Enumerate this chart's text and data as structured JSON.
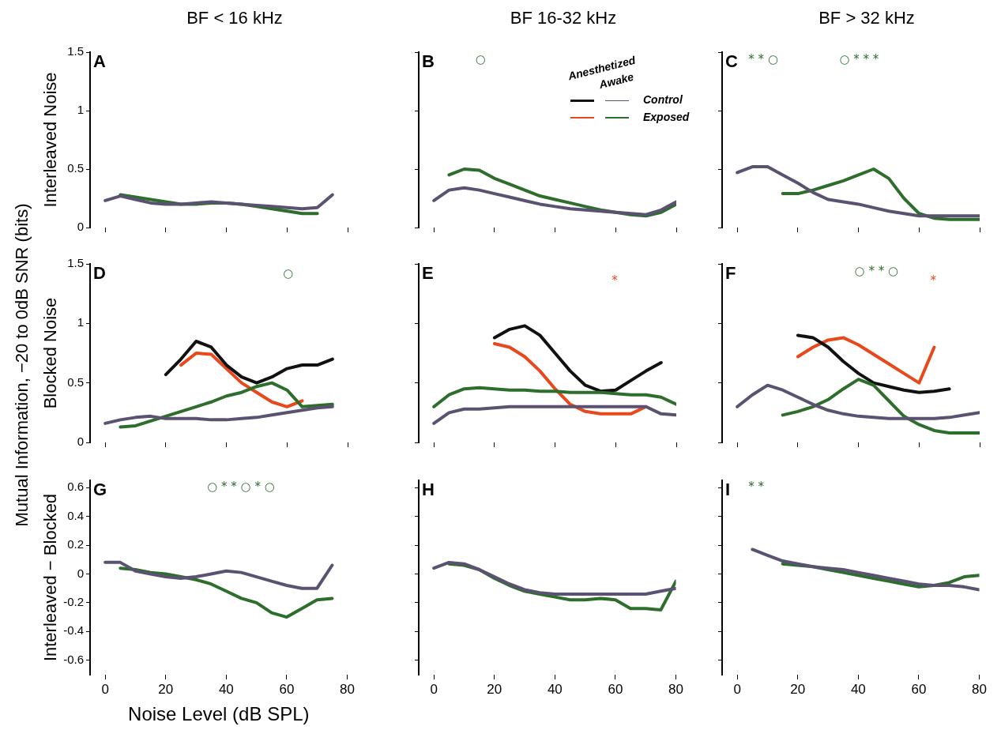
{
  "chart_data": [
    {
      "type": "line",
      "title": "A",
      "subtitle": "BF < 16 kHz",
      "ylabel": "Interleaved Noise",
      "xlim": [
        -5,
        80
      ],
      "xticks": [
        0,
        20,
        40,
        60,
        80
      ],
      "ylim": [
        0,
        1.5
      ],
      "yticks": [
        0,
        0.5,
        1,
        1.5
      ],
      "tick_labels": "y",
      "marker": "none",
      "series": [
        {
          "color": "#5b5272",
          "x": [
            0,
            5,
            10,
            15,
            20,
            25,
            30,
            35,
            40,
            45,
            50,
            55,
            60,
            65,
            70,
            75
          ],
          "values": [
            0.23,
            0.27,
            0.24,
            0.21,
            0.2,
            0.2,
            0.21,
            0.22,
            0.21,
            0.2,
            0.19,
            0.18,
            0.17,
            0.16,
            0.17,
            0.28
          ]
        },
        {
          "color": "#2d6e2d",
          "x": [
            5,
            10,
            15,
            20,
            25,
            30,
            35,
            40,
            45,
            50,
            55,
            60,
            65,
            70
          ],
          "values": [
            0.28,
            0.26,
            0.24,
            0.22,
            0.2,
            0.2,
            0.21,
            0.21,
            0.2,
            0.18,
            0.16,
            0.14,
            0.12,
            0.12
          ]
        }
      ]
    },
    {
      "type": "line",
      "title": "B",
      "subtitle": "BF 16-32 kHz",
      "xlim": [
        -5,
        80
      ],
      "xticks": [
        0,
        20,
        40,
        60,
        80
      ],
      "ylim": [
        0,
        1.5
      ],
      "yticks": [
        0,
        0.5,
        1,
        1.5
      ],
      "tick_labels": false,
      "marker": "none",
      "annotations": [
        "○",
        "Anesthetized",
        "Awake",
        "Control",
        "Exposed"
      ],
      "series": [
        {
          "color": "#5b5272",
          "x": [
            0,
            5,
            10,
            15,
            20,
            25,
            30,
            35,
            40,
            45,
            50,
            55,
            60,
            65,
            70,
            75,
            80
          ],
          "values": [
            0.23,
            0.32,
            0.34,
            0.32,
            0.29,
            0.26,
            0.23,
            0.2,
            0.18,
            0.16,
            0.15,
            0.14,
            0.13,
            0.12,
            0.11,
            0.15,
            0.22
          ]
        },
        {
          "color": "#2d6e2d",
          "x": [
            5,
            10,
            15,
            20,
            25,
            30,
            35,
            40,
            45,
            50,
            55,
            60,
            65,
            70,
            75,
            80
          ],
          "values": [
            0.45,
            0.5,
            0.49,
            0.42,
            0.37,
            0.32,
            0.27,
            0.24,
            0.21,
            0.18,
            0.15,
            0.13,
            0.11,
            0.1,
            0.13,
            0.2
          ]
        }
      ]
    },
    {
      "type": "line",
      "title": "C",
      "subtitle": "BF > 32 kHz",
      "xlim": [
        -5,
        80
      ],
      "xticks": [
        0,
        20,
        40,
        60,
        80
      ],
      "ylim": [
        0,
        1.5
      ],
      "yticks": [
        0,
        0.5,
        1,
        1.5
      ],
      "tick_labels": false,
      "marker": "none",
      "annotations": [
        "* * ○",
        "○ * * *"
      ],
      "series": [
        {
          "color": "#5b5272",
          "x": [
            0,
            5,
            10,
            15,
            20,
            25,
            30,
            35,
            40,
            45,
            50,
            55,
            60,
            65,
            70,
            75,
            80
          ],
          "values": [
            0.47,
            0.52,
            0.52,
            0.45,
            0.38,
            0.3,
            0.24,
            0.22,
            0.2,
            0.17,
            0.14,
            0.12,
            0.1,
            0.1,
            0.1,
            0.1,
            0.1
          ]
        },
        {
          "color": "#2d6e2d",
          "x": [
            15,
            20,
            25,
            30,
            35,
            40,
            45,
            50,
            55,
            60,
            65,
            70,
            75,
            80
          ],
          "values": [
            0.29,
            0.29,
            0.32,
            0.36,
            0.4,
            0.45,
            0.5,
            0.42,
            0.25,
            0.12,
            0.08,
            0.07,
            0.07,
            0.07
          ]
        }
      ]
    },
    {
      "type": "line",
      "title": "D",
      "ylabel": "Blocked Noise",
      "xlim": [
        -5,
        80
      ],
      "xticks": [
        0,
        20,
        40,
        60,
        80
      ],
      "ylim": [
        0,
        1.5
      ],
      "yticks": [
        0,
        0.5,
        1,
        1.5
      ],
      "tick_labels": "y",
      "marker": "none",
      "annotations": [
        "○",
        "Mutual Information, −20 to 0dB SNR (bits)"
      ],
      "series": [
        {
          "color": "#5b5272",
          "x": [
            0,
            5,
            10,
            15,
            20,
            25,
            30,
            35,
            40,
            45,
            50,
            55,
            60,
            65,
            70,
            75
          ],
          "values": [
            0.16,
            0.19,
            0.21,
            0.22,
            0.2,
            0.2,
            0.2,
            0.19,
            0.19,
            0.2,
            0.21,
            0.23,
            0.25,
            0.27,
            0.29,
            0.3
          ]
        },
        {
          "color": "#2d6e2d",
          "x": [
            5,
            10,
            15,
            20,
            25,
            30,
            35,
            40,
            45,
            50,
            55,
            60,
            65,
            70,
            75
          ],
          "values": [
            0.13,
            0.14,
            0.18,
            0.22,
            0.26,
            0.3,
            0.34,
            0.39,
            0.42,
            0.47,
            0.5,
            0.44,
            0.3,
            0.31,
            0.32
          ]
        },
        {
          "color": "#111111",
          "x": [
            20,
            25,
            30,
            35,
            40,
            45,
            50,
            55,
            60,
            65,
            70,
            75
          ],
          "values": [
            0.57,
            0.7,
            0.85,
            0.8,
            0.65,
            0.55,
            0.5,
            0.55,
            0.62,
            0.65,
            0.65,
            0.7
          ]
        },
        {
          "color": "#e8481c",
          "x": [
            25,
            30,
            35,
            40,
            45,
            50,
            55,
            60,
            65
          ],
          "values": [
            0.65,
            0.75,
            0.74,
            0.62,
            0.5,
            0.42,
            0.34,
            0.3,
            0.35
          ]
        }
      ]
    },
    {
      "type": "line",
      "title": "E",
      "xlim": [
        -5,
        80
      ],
      "xticks": [
        0,
        20,
        40,
        60,
        80
      ],
      "ylim": [
        0,
        1.5
      ],
      "yticks": [
        0,
        0.5,
        1,
        1.5
      ],
      "tick_labels": false,
      "marker": "none",
      "annotations": [
        "*"
      ],
      "series": [
        {
          "color": "#5b5272",
          "x": [
            0,
            5,
            10,
            15,
            20,
            25,
            30,
            35,
            40,
            45,
            50,
            55,
            60,
            65,
            70,
            75,
            80
          ],
          "values": [
            0.16,
            0.25,
            0.28,
            0.28,
            0.29,
            0.3,
            0.3,
            0.3,
            0.3,
            0.3,
            0.3,
            0.3,
            0.3,
            0.3,
            0.3,
            0.24,
            0.23
          ]
        },
        {
          "color": "#2d6e2d",
          "x": [
            0,
            5,
            10,
            15,
            20,
            25,
            30,
            35,
            40,
            45,
            50,
            55,
            60,
            65,
            70,
            75,
            80
          ],
          "values": [
            0.3,
            0.4,
            0.45,
            0.46,
            0.45,
            0.44,
            0.44,
            0.43,
            0.43,
            0.42,
            0.42,
            0.42,
            0.41,
            0.4,
            0.4,
            0.38,
            0.32
          ]
        },
        {
          "color": "#111111",
          "x": [
            20,
            25,
            30,
            35,
            40,
            45,
            50,
            55,
            60,
            65,
            70,
            75
          ],
          "values": [
            0.88,
            0.95,
            0.98,
            0.9,
            0.75,
            0.6,
            0.48,
            0.43,
            0.44,
            0.52,
            0.6,
            0.67
          ]
        },
        {
          "color": "#e8481c",
          "x": [
            20,
            25,
            30,
            35,
            40,
            45,
            50,
            55,
            60,
            65,
            70
          ],
          "values": [
            0.83,
            0.8,
            0.72,
            0.6,
            0.45,
            0.32,
            0.26,
            0.24,
            0.24,
            0.24,
            0.3
          ]
        }
      ]
    },
    {
      "type": "line",
      "title": "F",
      "xlim": [
        -5,
        80
      ],
      "xticks": [
        0,
        20,
        40,
        60,
        80
      ],
      "ylim": [
        0,
        1.5
      ],
      "yticks": [
        0,
        0.5,
        1,
        1.5
      ],
      "tick_labels": false,
      "marker": "none",
      "annotations": [
        "○ * * ○",
        "*"
      ],
      "series": [
        {
          "color": "#5b5272",
          "x": [
            0,
            5,
            10,
            15,
            20,
            25,
            30,
            35,
            40,
            45,
            50,
            55,
            60,
            65,
            70,
            75,
            80
          ],
          "values": [
            0.3,
            0.4,
            0.48,
            0.44,
            0.38,
            0.32,
            0.27,
            0.24,
            0.22,
            0.21,
            0.2,
            0.2,
            0.2,
            0.2,
            0.21,
            0.23,
            0.25
          ]
        },
        {
          "color": "#2d6e2d",
          "x": [
            15,
            20,
            25,
            30,
            35,
            40,
            45,
            50,
            55,
            60,
            65,
            70,
            75,
            80
          ],
          "values": [
            0.23,
            0.26,
            0.3,
            0.36,
            0.45,
            0.53,
            0.48,
            0.35,
            0.22,
            0.15,
            0.1,
            0.08,
            0.08,
            0.08
          ]
        },
        {
          "color": "#111111",
          "x": [
            20,
            25,
            30,
            35,
            40,
            45,
            50,
            55,
            60,
            65,
            70
          ],
          "values": [
            0.9,
            0.88,
            0.8,
            0.68,
            0.58,
            0.5,
            0.47,
            0.44,
            0.42,
            0.43,
            0.45
          ]
        },
        {
          "color": "#e8481c",
          "x": [
            20,
            25,
            30,
            35,
            40,
            45,
            50,
            55,
            60,
            65
          ],
          "values": [
            0.72,
            0.8,
            0.86,
            0.88,
            0.82,
            0.74,
            0.66,
            0.58,
            0.5,
            0.8
          ]
        }
      ]
    },
    {
      "type": "line",
      "title": "G",
      "ylabel": "Interleaved − Blocked",
      "xlabel": "Noise Level (dB SPL)",
      "xlim": [
        -5,
        80
      ],
      "xticks": [
        0,
        20,
        40,
        60,
        80
      ],
      "ylim": [
        -0.7,
        0.65
      ],
      "yticks": [
        -0.6,
        -0.4,
        -0.2,
        0,
        0.2,
        0.4,
        0.6
      ],
      "marker": "none",
      "annotations": [
        "○ * * ○ * ○"
      ],
      "series": [
        {
          "color": "#5b5272",
          "x": [
            0,
            5,
            10,
            15,
            20,
            25,
            30,
            35,
            40,
            45,
            50,
            55,
            60,
            65,
            70,
            75
          ],
          "values": [
            0.08,
            0.08,
            0.02,
            0,
            -0.02,
            -0.03,
            -0.02,
            0,
            0.02,
            0.01,
            -0.02,
            -0.05,
            -0.08,
            -0.1,
            -0.1,
            0.06
          ]
        },
        {
          "color": "#2d6e2d",
          "x": [
            5,
            10,
            15,
            20,
            25,
            30,
            35,
            40,
            45,
            50,
            55,
            60,
            65,
            70,
            75
          ],
          "values": [
            0.04,
            0.03,
            0.01,
            0,
            -0.02,
            -0.04,
            -0.07,
            -0.12,
            -0.17,
            -0.2,
            -0.27,
            -0.3,
            -0.24,
            -0.18,
            -0.17
          ]
        }
      ]
    },
    {
      "type": "line",
      "title": "H",
      "xlim": [
        -5,
        80
      ],
      "xticks": [
        0,
        20,
        40,
        60,
        80
      ],
      "ylim": [
        -0.7,
        0.65
      ],
      "yticks": [
        -0.6,
        -0.4,
        -0.2,
        0,
        0.2,
        0.4,
        0.6
      ],
      "tick_labels": "x",
      "marker": "none",
      "series": [
        {
          "color": "#5b5272",
          "x": [
            0,
            5,
            10,
            15,
            20,
            25,
            30,
            35,
            40,
            45,
            50,
            55,
            60,
            65,
            70,
            75,
            80
          ],
          "values": [
            0.04,
            0.08,
            0.07,
            0.03,
            -0.02,
            -0.07,
            -0.11,
            -0.13,
            -0.14,
            -0.14,
            -0.14,
            -0.14,
            -0.14,
            -0.14,
            -0.14,
            -0.12,
            -0.1
          ]
        },
        {
          "color": "#2d6e2d",
          "x": [
            5,
            10,
            15,
            20,
            25,
            30,
            35,
            40,
            45,
            50,
            55,
            60,
            65,
            70,
            75,
            80
          ],
          "values": [
            0.07,
            0.06,
            0.03,
            -0.03,
            -0.08,
            -0.12,
            -0.14,
            -0.16,
            -0.18,
            -0.18,
            -0.17,
            -0.18,
            -0.24,
            -0.24,
            -0.25,
            -0.05
          ]
        }
      ]
    },
    {
      "type": "line",
      "title": "I",
      "xlim": [
        -5,
        80
      ],
      "xticks": [
        0,
        20,
        40,
        60,
        80
      ],
      "ylim": [
        -0.7,
        0.65
      ],
      "yticks": [
        -0.6,
        -0.4,
        -0.2,
        0,
        0.2,
        0.4,
        0.6
      ],
      "tick_labels": "x",
      "marker": "none",
      "annotations": [
        "* *"
      ],
      "series": [
        {
          "color": "#5b5272",
          "x": [
            5,
            10,
            15,
            20,
            25,
            30,
            35,
            40,
            45,
            50,
            55,
            60,
            65,
            70,
            75,
            80
          ],
          "values": [
            0.17,
            0.13,
            0.09,
            0.07,
            0.05,
            0.04,
            0.03,
            0.01,
            -0.01,
            -0.03,
            -0.05,
            -0.07,
            -0.08,
            -0.08,
            -0.09,
            -0.11
          ]
        },
        {
          "color": "#2d6e2d",
          "x": [
            15,
            20,
            25,
            30,
            35,
            40,
            45,
            50,
            55,
            60,
            65,
            70,
            75,
            80
          ],
          "values": [
            0.07,
            0.06,
            0.05,
            0.03,
            0.01,
            -0.01,
            -0.03,
            -0.05,
            -0.07,
            -0.09,
            -0.08,
            -0.06,
            -0.02,
            -0.01
          ]
        }
      ]
    }
  ]
}
